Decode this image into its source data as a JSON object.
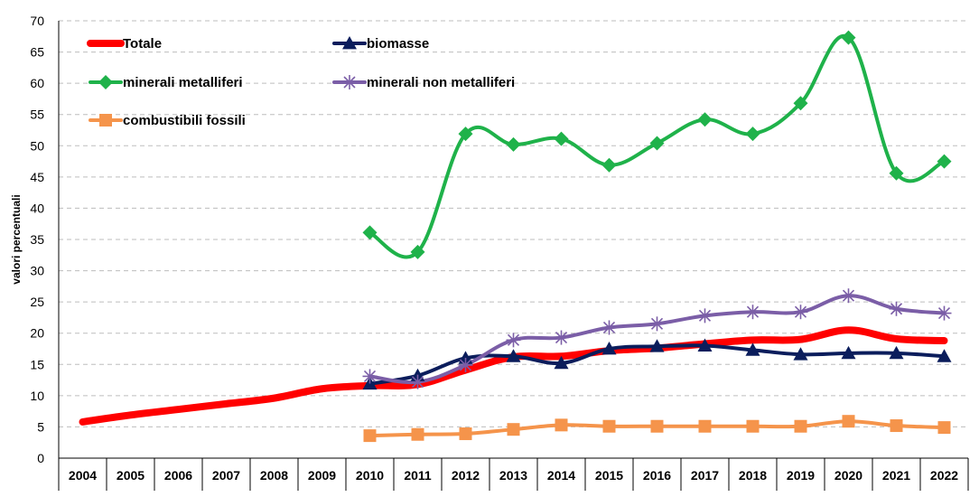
{
  "chart_data": {
    "type": "line",
    "title": "",
    "xlabel": "",
    "ylabel": "valori percentuali",
    "ylim": [
      0,
      70
    ],
    "yticks": [
      0,
      5,
      10,
      15,
      20,
      25,
      30,
      35,
      40,
      45,
      50,
      55,
      60,
      65,
      70
    ],
    "grid": true,
    "legend_position": "top-left",
    "categories": [
      "2004",
      "2005",
      "2006",
      "2007",
      "2008",
      "2009",
      "2010",
      "2011",
      "2012",
      "2013",
      "2014",
      "2015",
      "2016",
      "2017",
      "2018",
      "2019",
      "2020",
      "2021",
      "2022"
    ],
    "series": [
      {
        "name": "Totale",
        "color": "#ff0000",
        "marker": "none",
        "values": [
          5.8,
          6.9,
          7.8,
          8.7,
          9.6,
          11.1,
          11.6,
          11.8,
          14.1,
          16.2,
          16.3,
          17.2,
          17.6,
          18.3,
          18.9,
          19.0,
          20.5,
          19.1,
          18.8
        ]
      },
      {
        "name": "biomasse",
        "color": "#0b1d5c",
        "marker": "triangle",
        "values": [
          null,
          null,
          null,
          null,
          null,
          null,
          11.9,
          13.2,
          16.0,
          16.3,
          15.2,
          17.5,
          17.9,
          18.0,
          17.3,
          16.6,
          16.8,
          16.8,
          16.3
        ]
      },
      {
        "name": "minerali metalliferi",
        "color": "#1fb24a",
        "marker": "diamond",
        "values": [
          null,
          null,
          null,
          null,
          null,
          null,
          36.1,
          33.0,
          51.9,
          50.2,
          51.1,
          46.9,
          50.4,
          54.2,
          51.9,
          56.8,
          67.3,
          45.6,
          47.5
        ]
      },
      {
        "name": "minerali non metalliferi",
        "color": "#7b5ea7",
        "marker": "star",
        "values": [
          null,
          null,
          null,
          null,
          null,
          null,
          13.1,
          12.2,
          14.9,
          18.9,
          19.3,
          20.9,
          21.5,
          22.8,
          23.4,
          23.4,
          26.0,
          23.9,
          23.2
        ]
      },
      {
        "name": "combustibili fossili",
        "color": "#f5944b",
        "marker": "square",
        "values": [
          null,
          null,
          null,
          null,
          null,
          null,
          3.6,
          3.8,
          3.9,
          4.6,
          5.3,
          5.1,
          5.1,
          5.1,
          5.1,
          5.1,
          5.9,
          5.2,
          4.9
        ]
      }
    ]
  }
}
